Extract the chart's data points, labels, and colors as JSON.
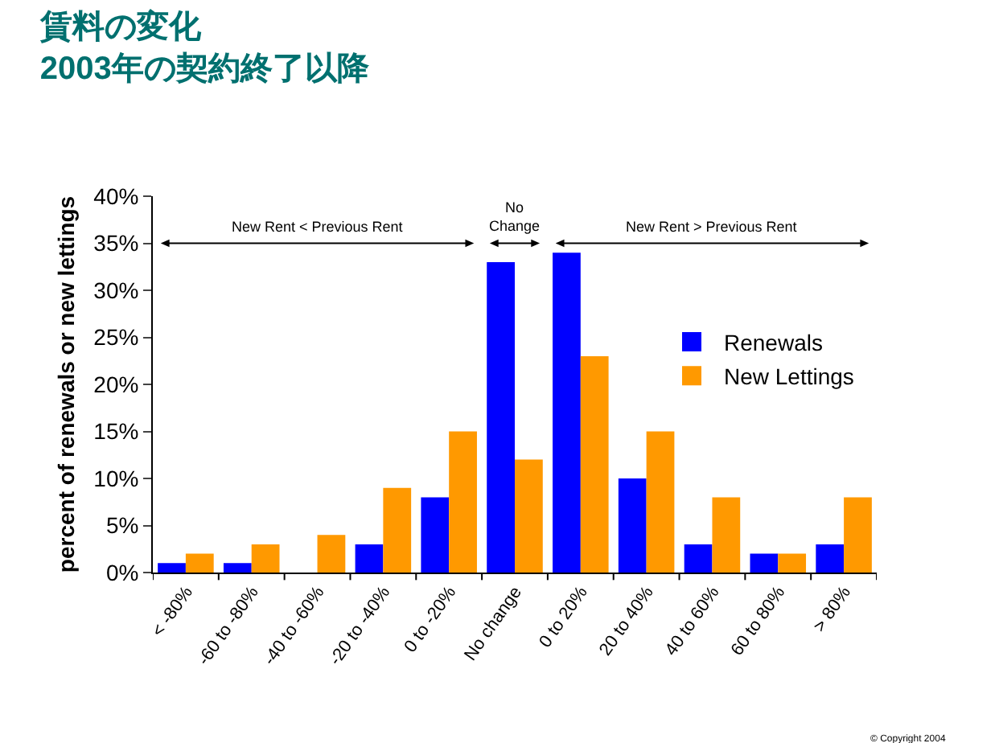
{
  "chart_data": {
    "type": "bar",
    "title": "賃料の変化\n2003年の契約終了以降",
    "ylabel": "percent of renewals or new lettings",
    "categories": [
      "< -80%",
      "-60 to -80%",
      "-40 to -60%",
      "-20 to -40%",
      "0 to -20%",
      "No change",
      "0 to 20%",
      "20 to 40%",
      "40 to 60%",
      "60 to 80%",
      "> 80%"
    ],
    "series": [
      {
        "name": "Renewals",
        "color": "#0000ff",
        "values": [
          1,
          1,
          0,
          3,
          8,
          33,
          34,
          10,
          3,
          2,
          3
        ]
      },
      {
        "name": "New Lettings",
        "color": "#ff9900",
        "values": [
          2,
          3,
          4,
          9,
          15,
          12,
          23,
          15,
          8,
          2,
          8
        ]
      }
    ],
    "ylim": [
      0,
      40
    ],
    "yticks": [
      {
        "value": 0,
        "label": "0%"
      },
      {
        "value": 5,
        "label": "5%"
      },
      {
        "value": 10,
        "label": "10%"
      },
      {
        "value": 15,
        "label": "15%"
      },
      {
        "value": 20,
        "label": "20%"
      },
      {
        "value": 25,
        "label": "25%"
      },
      {
        "value": 30,
        "label": "30%"
      },
      {
        "value": 35,
        "label": "35%"
      },
      {
        "value": 40,
        "label": "40%"
      }
    ],
    "annotations": [
      "New Rent < Previous Rent",
      "No\nChange",
      "New Rent > Previous Rent",
      "© Copyright 2004"
    ],
    "legend": "right"
  }
}
